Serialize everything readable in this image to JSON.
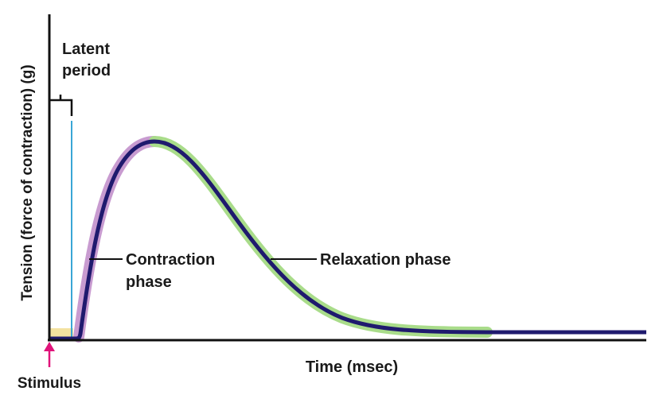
{
  "labels": {
    "y_axis": "Tension (force of contraction) (g)",
    "x_axis": "Time (msec)",
    "latent_line1": "Latent",
    "latent_line2": "period",
    "contraction_line1": "Contraction",
    "contraction_line2": "phase",
    "relaxation": "Relaxation phase",
    "stimulus": "Stimulus"
  },
  "colors": {
    "curve": "#1f1a6e",
    "contraction_highlight": "#c89bd0",
    "relaxation_highlight": "#a9dc8a",
    "latent_highlight": "#f3e2a0",
    "stimulus_line": "#3aa6d6",
    "stimulus_arrow": "#e0137a",
    "axes": "#111111"
  }
}
